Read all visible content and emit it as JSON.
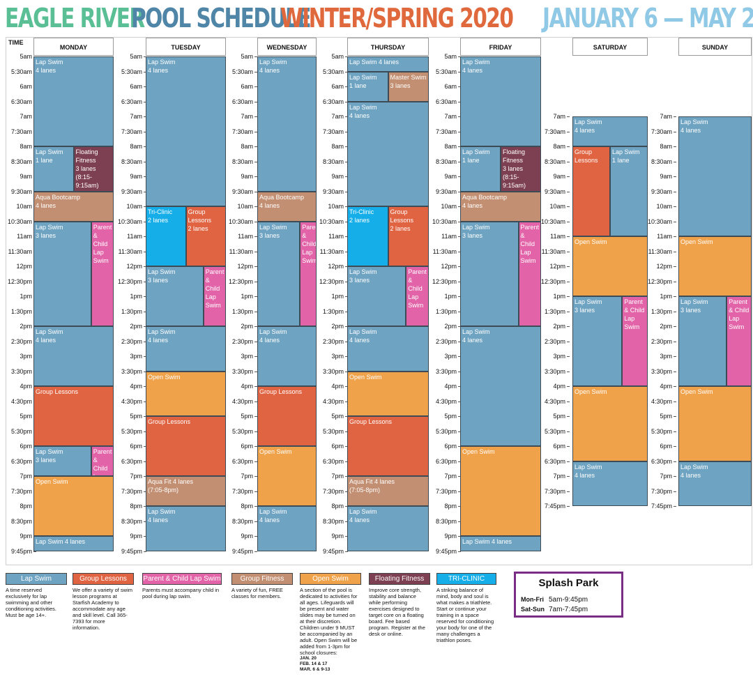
{
  "title": {
    "part1": "EAGLE RIVER",
    "part2": "POOL SCHEDULE",
    "part3": "WINTER/SPRING 2020",
    "dates": "JANUARY 6 — MAY 24"
  },
  "colors": {
    "title1": "#5bbf96",
    "title2": "#4f86a8",
    "title3": "#e0683d",
    "dates": "#8fc9e6",
    "lap": "#6fa3c2",
    "lessons": "#e16442",
    "parent": "#e263a8",
    "fitness": "#c28f72",
    "open": "#f0a24a",
    "floating": "#7d3f52",
    "tri": "#15aee9"
  },
  "time_header": "TIME",
  "days": [
    {
      "name": "MONDAY",
      "col": 0
    },
    {
      "name": "TUESDAY",
      "col": 1
    },
    {
      "name": "WEDNESDAY",
      "col": 2
    },
    {
      "name": "THURSDAY",
      "col": 3
    },
    {
      "name": "FRIDAY",
      "col": 4
    },
    {
      "name": "SATURDAY",
      "col": 5
    },
    {
      "name": "SUNDAY",
      "col": 6
    }
  ],
  "weekday_times": [
    "5am",
    "5:30am",
    "6am",
    "6:30am",
    "7am",
    "7:30am",
    "8am",
    "8:30am",
    "9am",
    "9:30am",
    "10am",
    "10:30am",
    "11am",
    "11:30am",
    "12pm",
    "12:30pm",
    "1pm",
    "1:30pm",
    "2pm",
    "2:30pm",
    "3pm",
    "3:30pm",
    "4pm",
    "4:30pm",
    "5pm",
    "5:30pm",
    "6pm",
    "6:30pm",
    "7pm",
    "7:30pm",
    "8pm",
    "8:30pm",
    "9pm",
    "9:45pm"
  ],
  "weekend_times": [
    "7am",
    "7:30am",
    "8am",
    "8:30am",
    "9am",
    "9:30am",
    "10am",
    "10:30am",
    "11am",
    "11:30am",
    "12pm",
    "12:30pm",
    "1pm",
    "1:30pm",
    "2pm",
    "2:30pm",
    "3pm",
    "3:30pm",
    "4pm",
    "4:30pm",
    "5pm",
    "5:30pm",
    "6pm",
    "6:30pm",
    "7pm",
    "7:30pm",
    "7:45pm"
  ],
  "events": [
    {
      "day": 0,
      "start": "5:00",
      "end": "8:00",
      "lane": 0,
      "of": 1,
      "type": "lap",
      "lines": [
        "Lap Swim",
        "4 lanes"
      ]
    },
    {
      "day": 0,
      "start": "8:00",
      "end": "9:30",
      "lane": 0,
      "of": 2,
      "type": "lap",
      "lines": [
        "Lap Swim",
        "1 lane"
      ]
    },
    {
      "day": 0,
      "start": "8:00",
      "end": "9:30",
      "lane": 1,
      "of": 2,
      "type": "floating",
      "lines": [
        "Floating",
        "Fitness",
        "3 lanes",
        "(8:15-9:15am)"
      ]
    },
    {
      "day": 0,
      "start": "9:30",
      "end": "10:30",
      "lane": 0,
      "of": 1,
      "type": "fitness",
      "lines": [
        "Aqua Bootcamp",
        "4 lanes"
      ]
    },
    {
      "day": 0,
      "start": "10:30",
      "end": "14:00",
      "lane": 0,
      "of": 1,
      "type": "lap",
      "lines": [
        "Lap Swim",
        "3 lanes"
      ],
      "split": 0.72
    },
    {
      "day": 0,
      "start": "10:30",
      "end": "14:00",
      "lane": 0,
      "of": 1,
      "type": "parent",
      "lines": [
        "Parent",
        "& Child",
        "Lap",
        "Swim"
      ],
      "right": 0.28
    },
    {
      "day": 0,
      "start": "14:00",
      "end": "16:00",
      "lane": 0,
      "of": 1,
      "type": "lap",
      "lines": [
        "Lap Swim",
        "4 lanes"
      ]
    },
    {
      "day": 0,
      "start": "16:00",
      "end": "18:00",
      "lane": 0,
      "of": 1,
      "type": "lessons",
      "lines": [
        "Group Lessons"
      ]
    },
    {
      "day": 0,
      "start": "18:00",
      "end": "19:00",
      "lane": 0,
      "of": 1,
      "type": "lap",
      "lines": [
        "Lap Swim",
        "3 lanes"
      ],
      "split": 0.72
    },
    {
      "day": 0,
      "start": "18:00",
      "end": "19:00",
      "lane": 0,
      "of": 1,
      "type": "parent",
      "lines": [
        "Parent",
        "& Child",
        "Lap",
        "Swim"
      ],
      "right": 0.28
    },
    {
      "day": 0,
      "start": "19:00",
      "end": "21:00",
      "lane": 0,
      "of": 1,
      "type": "open",
      "lines": [
        "Open Swim"
      ]
    },
    {
      "day": 0,
      "start": "21:00",
      "end": "21:30",
      "lane": 0,
      "of": 1,
      "type": "lap",
      "lines": [
        "Lap Swim 4 lanes"
      ]
    },
    {
      "day": 1,
      "start": "5:00",
      "end": "10:00",
      "lane": 0,
      "of": 1,
      "type": "lap",
      "lines": [
        "Lap Swim",
        "4 lanes"
      ]
    },
    {
      "day": 1,
      "start": "10:00",
      "end": "12:00",
      "lane": 0,
      "of": 2,
      "type": "tri",
      "lines": [
        "Tri-Clinic",
        "2 lanes"
      ]
    },
    {
      "day": 1,
      "start": "10:00",
      "end": "12:00",
      "lane": 1,
      "of": 2,
      "type": "lessons",
      "lines": [
        "Group",
        "Lessons",
        "2 lanes"
      ]
    },
    {
      "day": 1,
      "start": "12:00",
      "end": "14:00",
      "lane": 0,
      "of": 1,
      "type": "lap",
      "lines": [
        "Lap Swim",
        "3 lanes"
      ],
      "split": 0.72
    },
    {
      "day": 1,
      "start": "12:00",
      "end": "14:00",
      "lane": 0,
      "of": 1,
      "type": "parent",
      "lines": [
        "Parent",
        "& Child",
        "Lap",
        "Swim"
      ],
      "right": 0.28
    },
    {
      "day": 1,
      "start": "14:00",
      "end": "15:30",
      "lane": 0,
      "of": 1,
      "type": "lap",
      "lines": [
        "Lap Swim",
        "4 lanes"
      ]
    },
    {
      "day": 1,
      "start": "15:30",
      "end": "17:00",
      "lane": 0,
      "of": 1,
      "type": "open",
      "lines": [
        "Open Swim"
      ]
    },
    {
      "day": 1,
      "start": "17:00",
      "end": "19:00",
      "lane": 0,
      "of": 1,
      "type": "lessons",
      "lines": [
        "Group Lessons"
      ]
    },
    {
      "day": 1,
      "start": "19:00",
      "end": "20:00",
      "lane": 0,
      "of": 1,
      "type": "fitness",
      "lines": [
        "Aqua Fit 4 lanes",
        "(7:05-8pm)"
      ]
    },
    {
      "day": 1,
      "start": "20:00",
      "end": "21:30",
      "lane": 0,
      "of": 1,
      "type": "lap",
      "lines": [
        "Lap Swim",
        "4 lanes"
      ]
    },
    {
      "day": 2,
      "start": "5:00",
      "end": "9:30",
      "lane": 0,
      "of": 1,
      "type": "lap",
      "lines": [
        "Lap Swim",
        "4 lanes"
      ]
    },
    {
      "day": 2,
      "start": "9:30",
      "end": "10:30",
      "lane": 0,
      "of": 1,
      "type": "fitness",
      "lines": [
        "Aqua Bootcamp",
        "4 lanes"
      ]
    },
    {
      "day": 2,
      "start": "10:30",
      "end": "14:00",
      "lane": 0,
      "of": 1,
      "type": "lap",
      "lines": [
        "Lap Swim",
        "3 lanes"
      ],
      "split": 0.72
    },
    {
      "day": 2,
      "start": "10:30",
      "end": "14:00",
      "lane": 0,
      "of": 1,
      "type": "parent",
      "lines": [
        "Parent",
        "& Child",
        "Lap",
        "Swim"
      ],
      "right": 0.28
    },
    {
      "day": 2,
      "start": "14:00",
      "end": "16:00",
      "lane": 0,
      "of": 1,
      "type": "lap",
      "lines": [
        "Lap Swim",
        "4 lanes"
      ]
    },
    {
      "day": 2,
      "start": "16:00",
      "end": "18:00",
      "lane": 0,
      "of": 1,
      "type": "lessons",
      "lines": [
        "Group Lessons"
      ]
    },
    {
      "day": 2,
      "start": "18:00",
      "end": "20:00",
      "lane": 0,
      "of": 1,
      "type": "open",
      "lines": [
        "Open Swim"
      ]
    },
    {
      "day": 2,
      "start": "20:00",
      "end": "21:30",
      "lane": 0,
      "of": 1,
      "type": "lap",
      "lines": [
        "Lap Swim",
        "4 lanes"
      ]
    },
    {
      "day": 3,
      "start": "5:00",
      "end": "5:30",
      "lane": 0,
      "of": 1,
      "type": "lap",
      "lines": [
        "Lap Swim 4 lanes"
      ]
    },
    {
      "day": 3,
      "start": "5:30",
      "end": "6:30",
      "lane": 0,
      "of": 2,
      "type": "lap",
      "lines": [
        "Lap Swim",
        "1 lane"
      ]
    },
    {
      "day": 3,
      "start": "5:30",
      "end": "6:30",
      "lane": 1,
      "of": 2,
      "type": "fitness",
      "lines": [
        "Master Swim",
        "3 lanes"
      ]
    },
    {
      "day": 3,
      "start": "6:30",
      "end": "10:00",
      "lane": 0,
      "of": 1,
      "type": "lap",
      "lines": [
        "Lap Swim",
        "4 lanes"
      ]
    },
    {
      "day": 3,
      "start": "10:00",
      "end": "12:00",
      "lane": 0,
      "of": 2,
      "type": "tri",
      "lines": [
        "Tri-Clinic",
        "2 lanes"
      ]
    },
    {
      "day": 3,
      "start": "10:00",
      "end": "12:00",
      "lane": 1,
      "of": 2,
      "type": "lessons",
      "lines": [
        "Group",
        "Lessons",
        "2 lanes"
      ]
    },
    {
      "day": 3,
      "start": "12:00",
      "end": "14:00",
      "lane": 0,
      "of": 1,
      "type": "lap",
      "lines": [
        "Lap Swim",
        "3 lanes"
      ],
      "split": 0.72
    },
    {
      "day": 3,
      "start": "12:00",
      "end": "14:00",
      "lane": 0,
      "of": 1,
      "type": "parent",
      "lines": [
        "Parent",
        "& Child",
        "Lap",
        "Swim"
      ],
      "right": 0.28
    },
    {
      "day": 3,
      "start": "14:00",
      "end": "15:30",
      "lane": 0,
      "of": 1,
      "type": "lap",
      "lines": [
        "Lap Swim",
        "4 lanes"
      ]
    },
    {
      "day": 3,
      "start": "15:30",
      "end": "17:00",
      "lane": 0,
      "of": 1,
      "type": "open",
      "lines": [
        "Open Swim"
      ]
    },
    {
      "day": 3,
      "start": "17:00",
      "end": "19:00",
      "lane": 0,
      "of": 1,
      "type": "lessons",
      "lines": [
        "Group Lessons"
      ]
    },
    {
      "day": 3,
      "start": "19:00",
      "end": "20:00",
      "lane": 0,
      "of": 1,
      "type": "fitness",
      "lines": [
        "Aqua Fit 4 lanes",
        "(7:05-8pm)"
      ]
    },
    {
      "day": 3,
      "start": "20:00",
      "end": "21:30",
      "lane": 0,
      "of": 1,
      "type": "lap",
      "lines": [
        "Lap Swim",
        "4 lanes"
      ]
    },
    {
      "day": 4,
      "start": "5:00",
      "end": "8:00",
      "lane": 0,
      "of": 1,
      "type": "lap",
      "lines": [
        "Lap Swim",
        "4 lanes"
      ]
    },
    {
      "day": 4,
      "start": "8:00",
      "end": "9:30",
      "lane": 0,
      "of": 2,
      "type": "lap",
      "lines": [
        "Lap Swim",
        "1 lane"
      ]
    },
    {
      "day": 4,
      "start": "8:00",
      "end": "9:30",
      "lane": 1,
      "of": 2,
      "type": "floating",
      "lines": [
        "Floating",
        "Fitness",
        "3 lanes",
        "(8:15-9:15am)"
      ]
    },
    {
      "day": 4,
      "start": "9:30",
      "end": "10:30",
      "lane": 0,
      "of": 1,
      "type": "fitness",
      "lines": [
        "Aqua Bootcamp",
        "4 lanes"
      ]
    },
    {
      "day": 4,
      "start": "10:30",
      "end": "14:00",
      "lane": 0,
      "of": 1,
      "type": "lap",
      "lines": [
        "Lap Swim",
        "3 lanes"
      ],
      "split": 0.72
    },
    {
      "day": 4,
      "start": "10:30",
      "end": "14:00",
      "lane": 0,
      "of": 1,
      "type": "parent",
      "lines": [
        "Parent",
        "& Child",
        "Lap",
        "Swim"
      ],
      "right": 0.28
    },
    {
      "day": 4,
      "start": "14:00",
      "end": "18:00",
      "lane": 0,
      "of": 1,
      "type": "lap",
      "lines": [
        "Lap Swim",
        "4 lanes"
      ]
    },
    {
      "day": 4,
      "start": "18:00",
      "end": "21:00",
      "lane": 0,
      "of": 1,
      "type": "open",
      "lines": [
        "Open Swim"
      ]
    },
    {
      "day": 4,
      "start": "21:00",
      "end": "21:30",
      "lane": 0,
      "of": 1,
      "type": "lap",
      "lines": [
        "Lap Swim 4 lanes"
      ]
    },
    {
      "day": 5,
      "start": "7:00",
      "end": "8:00",
      "lane": 0,
      "of": 1,
      "type": "lap",
      "lines": [
        "Lap Swim",
        "4 lanes"
      ]
    },
    {
      "day": 5,
      "start": "8:00",
      "end": "11:00",
      "lane": 0,
      "of": 2,
      "type": "lessons",
      "lines": [
        "Group",
        "Lessons"
      ]
    },
    {
      "day": 5,
      "start": "8:00",
      "end": "11:00",
      "lane": 1,
      "of": 2,
      "type": "lap",
      "lines": [
        "Lap Swim",
        "1 lane"
      ]
    },
    {
      "day": 5,
      "start": "11:00",
      "end": "13:00",
      "lane": 0,
      "of": 1,
      "type": "open",
      "lines": [
        "Open Swim"
      ]
    },
    {
      "day": 5,
      "start": "13:00",
      "end": "16:00",
      "lane": 0,
      "of": 1,
      "type": "lap",
      "lines": [
        "Lap Swim",
        "3 lanes"
      ],
      "split": 0.66
    },
    {
      "day": 5,
      "start": "13:00",
      "end": "16:00",
      "lane": 0,
      "of": 1,
      "type": "parent",
      "lines": [
        "Parent",
        "& Child",
        "Lap",
        "Swim"
      ],
      "right": 0.34
    },
    {
      "day": 5,
      "start": "16:00",
      "end": "18:30",
      "lane": 0,
      "of": 1,
      "type": "open",
      "lines": [
        "Open Swim"
      ]
    },
    {
      "day": 5,
      "start": "18:30",
      "end": "20:00",
      "lane": 0,
      "of": 1,
      "type": "lap",
      "lines": [
        "Lap Swim",
        "4 lanes"
      ]
    },
    {
      "day": 6,
      "start": "7:00",
      "end": "11:00",
      "lane": 0,
      "of": 1,
      "type": "lap",
      "lines": [
        "Lap Swim",
        "4 lanes"
      ]
    },
    {
      "day": 6,
      "start": "11:00",
      "end": "13:00",
      "lane": 0,
      "of": 1,
      "type": "open",
      "lines": [
        "Open Swim"
      ]
    },
    {
      "day": 6,
      "start": "13:00",
      "end": "16:00",
      "lane": 0,
      "of": 1,
      "type": "lap",
      "lines": [
        "Lap Swim",
        "3 lanes"
      ],
      "split": 0.66
    },
    {
      "day": 6,
      "start": "13:00",
      "end": "16:00",
      "lane": 0,
      "of": 1,
      "type": "parent",
      "lines": [
        "Parent",
        "& Child",
        "Lap",
        "Swim"
      ],
      "right": 0.34
    },
    {
      "day": 6,
      "start": "16:00",
      "end": "18:30",
      "lane": 0,
      "of": 1,
      "type": "open",
      "lines": [
        "Open Swim"
      ]
    },
    {
      "day": 6,
      "start": "18:30",
      "end": "20:00",
      "lane": 0,
      "of": 1,
      "type": "lap",
      "lines": [
        "Lap Swim",
        "4 lanes"
      ]
    }
  ],
  "legend": [
    {
      "type": "lap",
      "label": "Lap Swim",
      "desc": "A time reserved exclusively for lap swimming and other conditioning activities. Must be age 14+."
    },
    {
      "type": "lessons",
      "label": "Group Lessons",
      "desc": "We offer a variety of swim lesson programs at Starfish Academy to accommodate any age and skill level. Call 365-7393 for more information."
    },
    {
      "type": "parent",
      "label": "Parent & Child Lap Swim",
      "desc": "Parents must accompany child in pool during lap swim."
    },
    {
      "type": "fitness",
      "label": "Group Fitness",
      "desc": "A variety of fun, FREE classes for members."
    },
    {
      "type": "open",
      "label": "Open Swim",
      "desc": "A section of the pool is dedicated to activities for all ages. Lifeguards will be present and water slides may be turned on at their discretion. Children under 9 MUST be accompanied by an adult. Open Swim will be added from 1-3pm for school closures:",
      "closures": [
        "JAN. 20",
        "FEB. 14 & 17",
        "MAR. 6 & 9-13"
      ]
    },
    {
      "type": "floating",
      "label": "Floating Fitness",
      "desc": "Improve core strength, stability and balance while performing exercises designed to target core on a floating board. Fee based program. Register at the desk or online."
    },
    {
      "type": "tri",
      "label": "TRI-CLINIC",
      "desc": "A striking balance of mind, body and soul is what makes a triathlete. Start or continue your training in a space reserved for conditioning your body for one of the many challenges a triathlon poses."
    }
  ],
  "splash": {
    "title": "Splash Park",
    "rows": [
      {
        "days": "Mon-Fri",
        "hours": "5am-9:45pm"
      },
      {
        "days": "Sat-Sun",
        "hours": "7am-7:45pm"
      }
    ]
  }
}
